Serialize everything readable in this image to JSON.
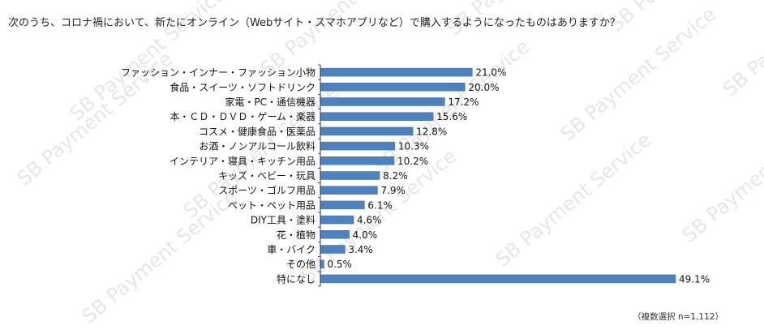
{
  "watermark": {
    "text": "SB Payment Service"
  },
  "colors": {
    "bar": "#4f81bd",
    "bar_stroke": "#3d6fa8",
    "axis": "#333333",
    "text": "#111111"
  },
  "chart_data": {
    "type": "bar",
    "orientation": "horizontal",
    "title": "次のうち、コロナ禍において、新たにオンライン（Webサイト・スマホアプリなど）で購入するようになったものはありますか？",
    "note": "（複数選択 n=1,112）",
    "unit": "%",
    "xlim": [
      0,
      55
    ],
    "categories": [
      "ファッション・インナー・ファッション小物",
      "食品・スイーツ・ソフトドリンク",
      "家電・PC・通信機器",
      "本・ＣＤ・ＤＶＤ・ゲーム・楽器",
      "コスメ・健康食品・医薬品",
      "お酒・ノンアルコール飲料",
      "インテリア・寝具・キッチン用品",
      "キッズ・ベビー・玩具",
      "スポーツ・ゴルフ用品",
      "ペット・ペット用品",
      "DIY工具・塗料",
      "花・植物",
      "車・バイク",
      "その他",
      "特になし"
    ],
    "values": [
      21.0,
      20.0,
      17.2,
      15.6,
      12.8,
      10.3,
      10.2,
      8.2,
      7.9,
      6.1,
      4.6,
      4.0,
      3.4,
      0.5,
      49.1
    ],
    "value_labels": [
      "21.0%",
      "20.0%",
      "17.2%",
      "15.6%",
      "12.8%",
      "10.3%",
      "10.2%",
      "8.2%",
      "7.9%",
      "6.1%",
      "4.6%",
      "4.0%",
      "3.4%",
      "0.5%",
      "49.1%"
    ]
  }
}
